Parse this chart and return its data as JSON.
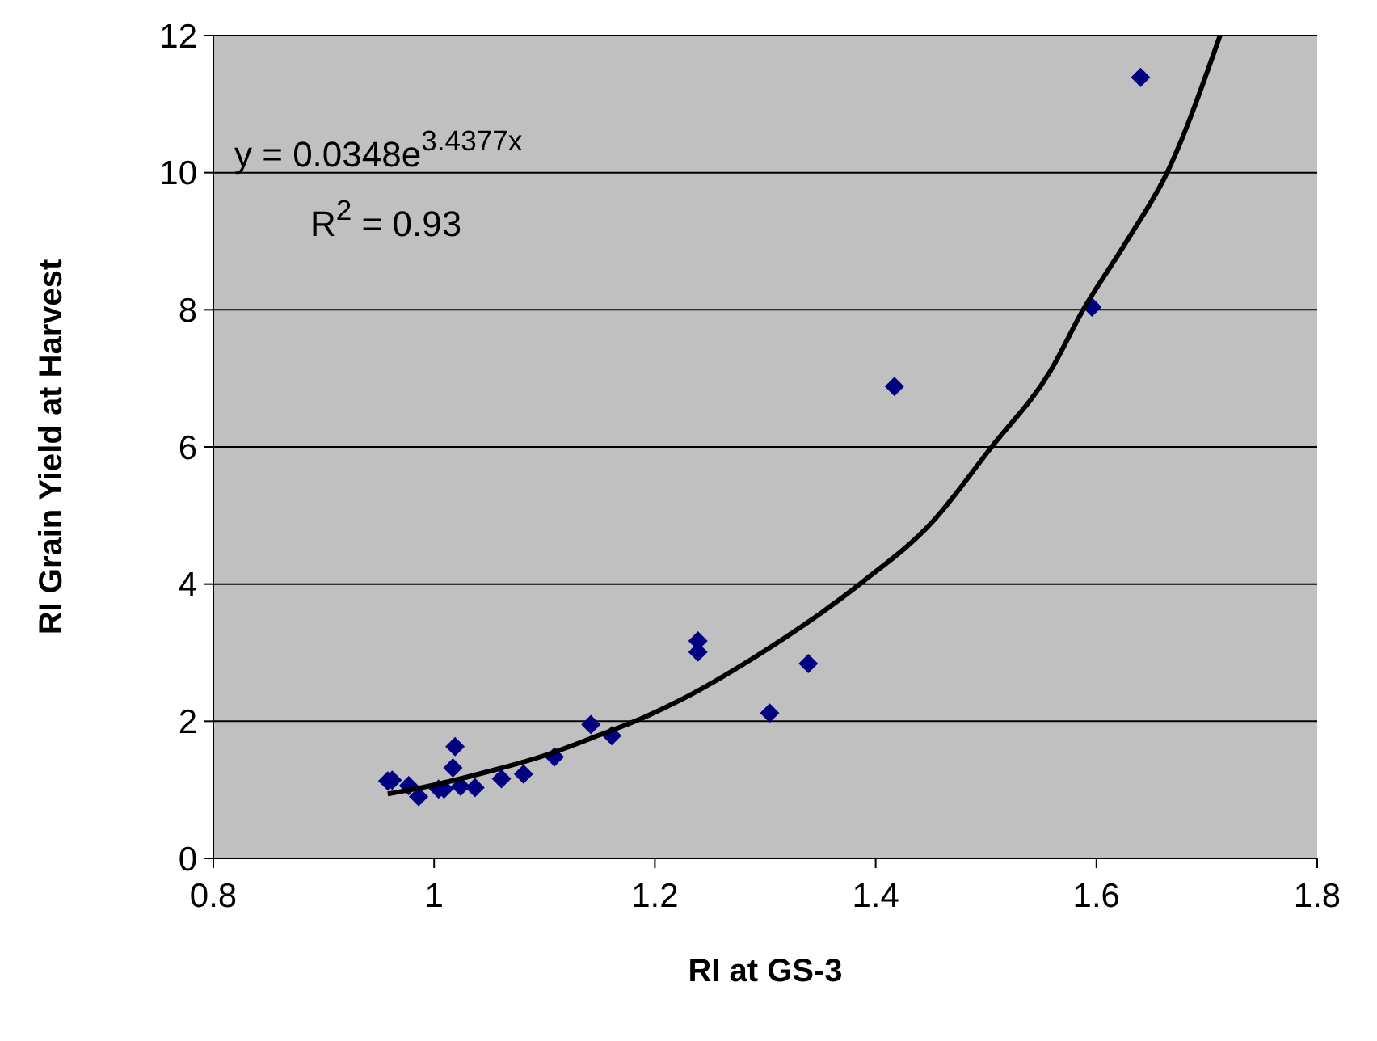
{
  "chart_data": {
    "type": "scatter",
    "xlabel": "RI at GS-3",
    "ylabel": "RI Grain Yield at Harvest",
    "xlim": [
      0.8,
      1.8
    ],
    "xticks": [
      0.8,
      1,
      1.2,
      1.4,
      1.6,
      1.8
    ],
    "ylim": [
      0,
      12
    ],
    "yticks": [
      0,
      2,
      4,
      6,
      8,
      10,
      12
    ],
    "grid": "y",
    "marker": "diamond",
    "annotations": [
      "y = 0.0348e$^{3.4377x}$",
      "R$^{2}$ = 0.93"
    ],
    "series": [
      {
        "color": "#000080",
        "x": [
          0.958,
          0.962,
          0.977,
          0.986,
          1.004,
          1.009,
          1.017,
          1.019,
          1.024,
          1.037,
          1.061,
          1.081,
          1.109,
          1.142,
          1.161,
          1.239,
          1.239,
          1.304,
          1.339,
          1.417,
          1.596,
          1.64
        ],
        "values": [
          1.13,
          1.14,
          1.06,
          0.9,
          1.01,
          1.01,
          1.32,
          1.63,
          1.05,
          1.03,
          1.16,
          1.23,
          1.48,
          1.95,
          1.79,
          3.17,
          3.01,
          2.12,
          2.84,
          6.88,
          8.04,
          11.39
        ]
      },
      {
        "type": "line",
        "color": "#000000",
        "marker": "none",
        "x": [
          0.958,
          1.0,
          1.05,
          1.1,
          1.15,
          1.192,
          1.222,
          1.29,
          1.388,
          1.451,
          1.505,
          1.558,
          1.588,
          1.627,
          1.664,
          1.712
        ],
        "values": [
          0.94,
          1.07,
          1.27,
          1.5,
          1.8,
          2.07,
          2.3,
          2.93,
          4.03,
          4.9,
          6.0,
          7.1,
          8.0,
          8.99,
          10.0,
          12.0
        ]
      }
    ]
  }
}
